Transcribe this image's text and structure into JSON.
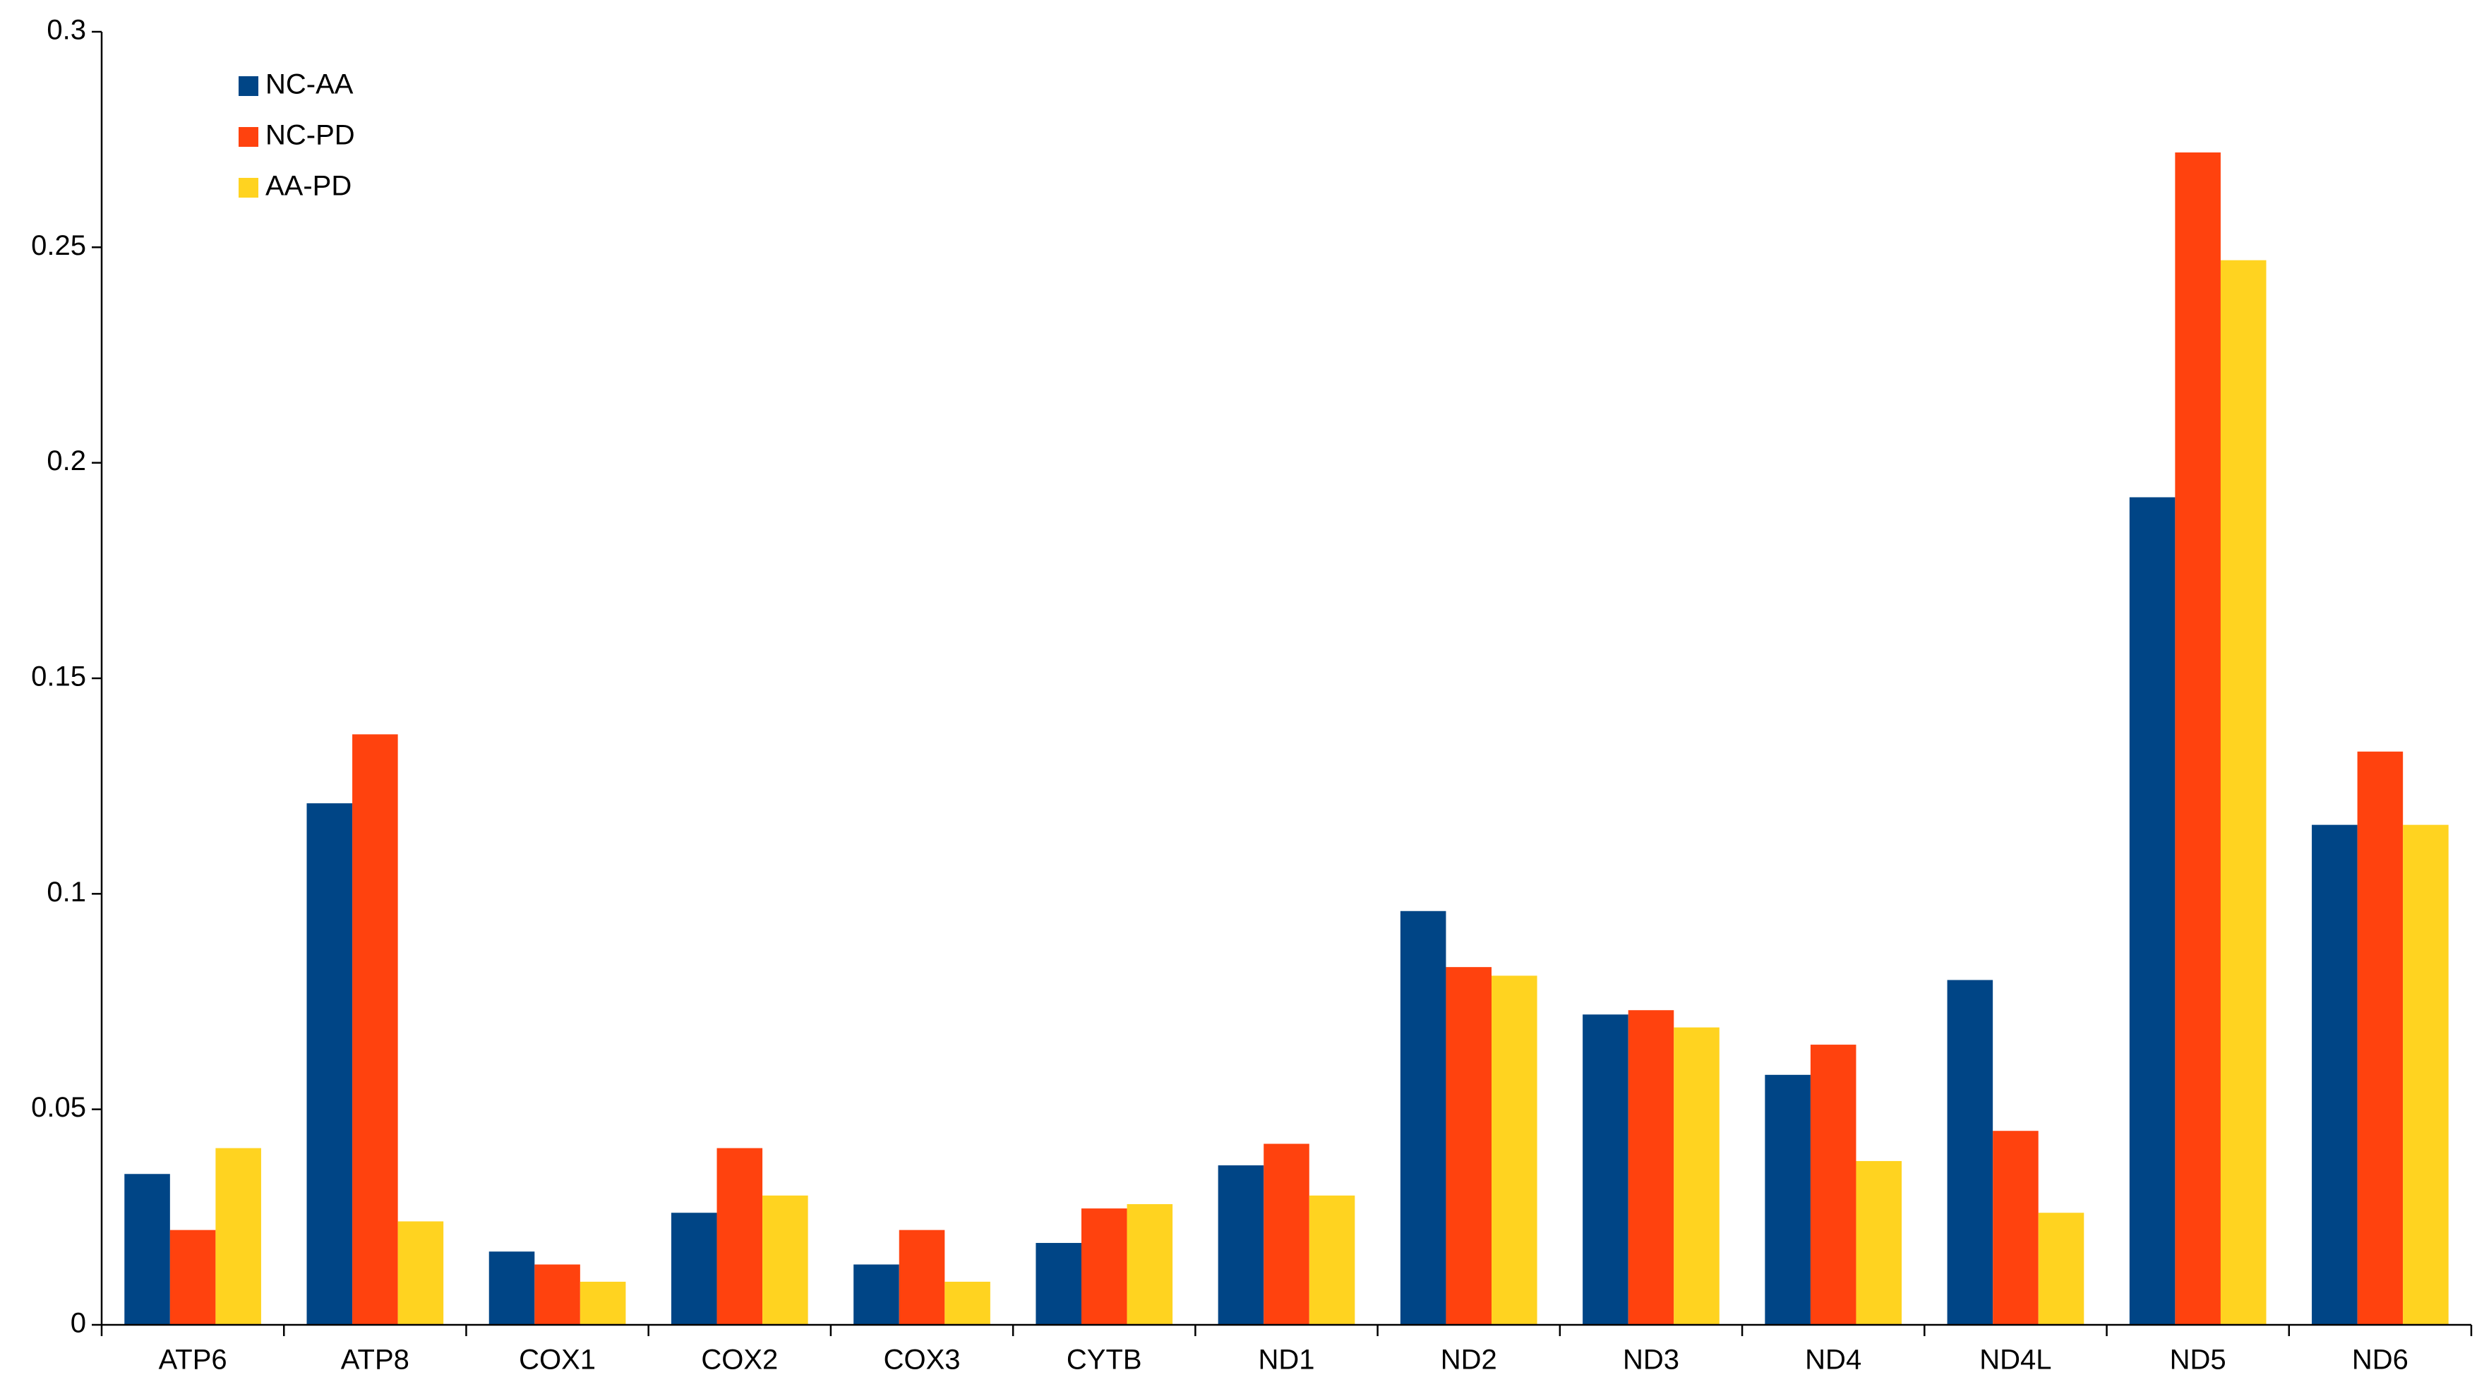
{
  "chart_data": {
    "type": "bar",
    "categories": [
      "ATP6",
      "ATP8",
      "COX1",
      "COX2",
      "COX3",
      "CYTB",
      "ND1",
      "ND2",
      "ND3",
      "ND4",
      "ND4L",
      "ND5",
      "ND6"
    ],
    "series": [
      {
        "name": "NC-AA",
        "color": "#004586",
        "values": [
          0.035,
          0.121,
          0.017,
          0.026,
          0.014,
          0.019,
          0.037,
          0.096,
          0.072,
          0.058,
          0.08,
          0.192,
          0.116
        ]
      },
      {
        "name": "NC-PD",
        "color": "#ff420e",
        "values": [
          0.022,
          0.137,
          0.014,
          0.041,
          0.022,
          0.027,
          0.042,
          0.083,
          0.073,
          0.065,
          0.045,
          0.272,
          0.133
        ]
      },
      {
        "name": "AA-PD",
        "color": "#ffd320",
        "values": [
          0.041,
          0.024,
          0.01,
          0.03,
          0.01,
          0.028,
          0.03,
          0.081,
          0.069,
          0.038,
          0.026,
          0.247,
          0.116
        ]
      }
    ],
    "ylim": [
      0,
      0.3
    ],
    "yticks": [
      0,
      0.05,
      0.1,
      0.15,
      0.2,
      0.25,
      0.3
    ],
    "grid": false,
    "legend": "top-left"
  }
}
